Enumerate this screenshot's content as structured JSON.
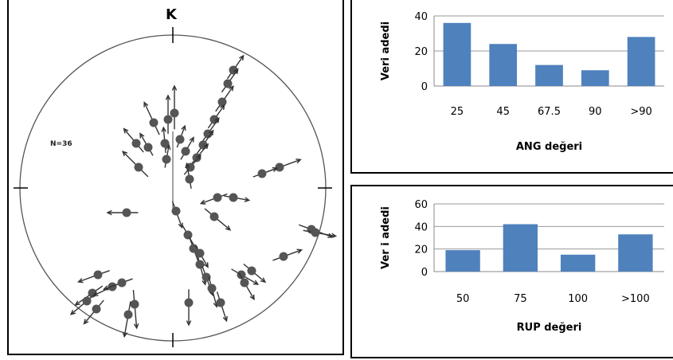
{
  "stereonet": {
    "north_label": "K",
    "count_label": "N=36",
    "colors": {
      "circle": "#555555",
      "marker": "#555555",
      "arrow": "#333333"
    }
  },
  "chart_data": [
    {
      "type": "bar",
      "categories": [
        "25",
        "45",
        "67.5",
        "90",
        ">90"
      ],
      "values": [
        36,
        24,
        12,
        9,
        28
      ],
      "title": "",
      "xlabel": "ANG değeri",
      "ylabel": "Veri adedi",
      "ylim": [
        0,
        40
      ],
      "yticks": [
        0,
        20,
        40
      ],
      "grid": true,
      "bar_color": "#4f81bd"
    },
    {
      "type": "bar",
      "categories": [
        "50",
        "75",
        "100",
        ">100"
      ],
      "values": [
        19,
        42,
        15,
        33
      ],
      "title": "",
      "xlabel": "RUP değeri",
      "ylabel": "Ver i adedi",
      "ylim": [
        0,
        60
      ],
      "yticks": [
        0,
        20,
        40,
        60
      ],
      "grid": true,
      "bar_color": "#4f81bd"
    }
  ]
}
